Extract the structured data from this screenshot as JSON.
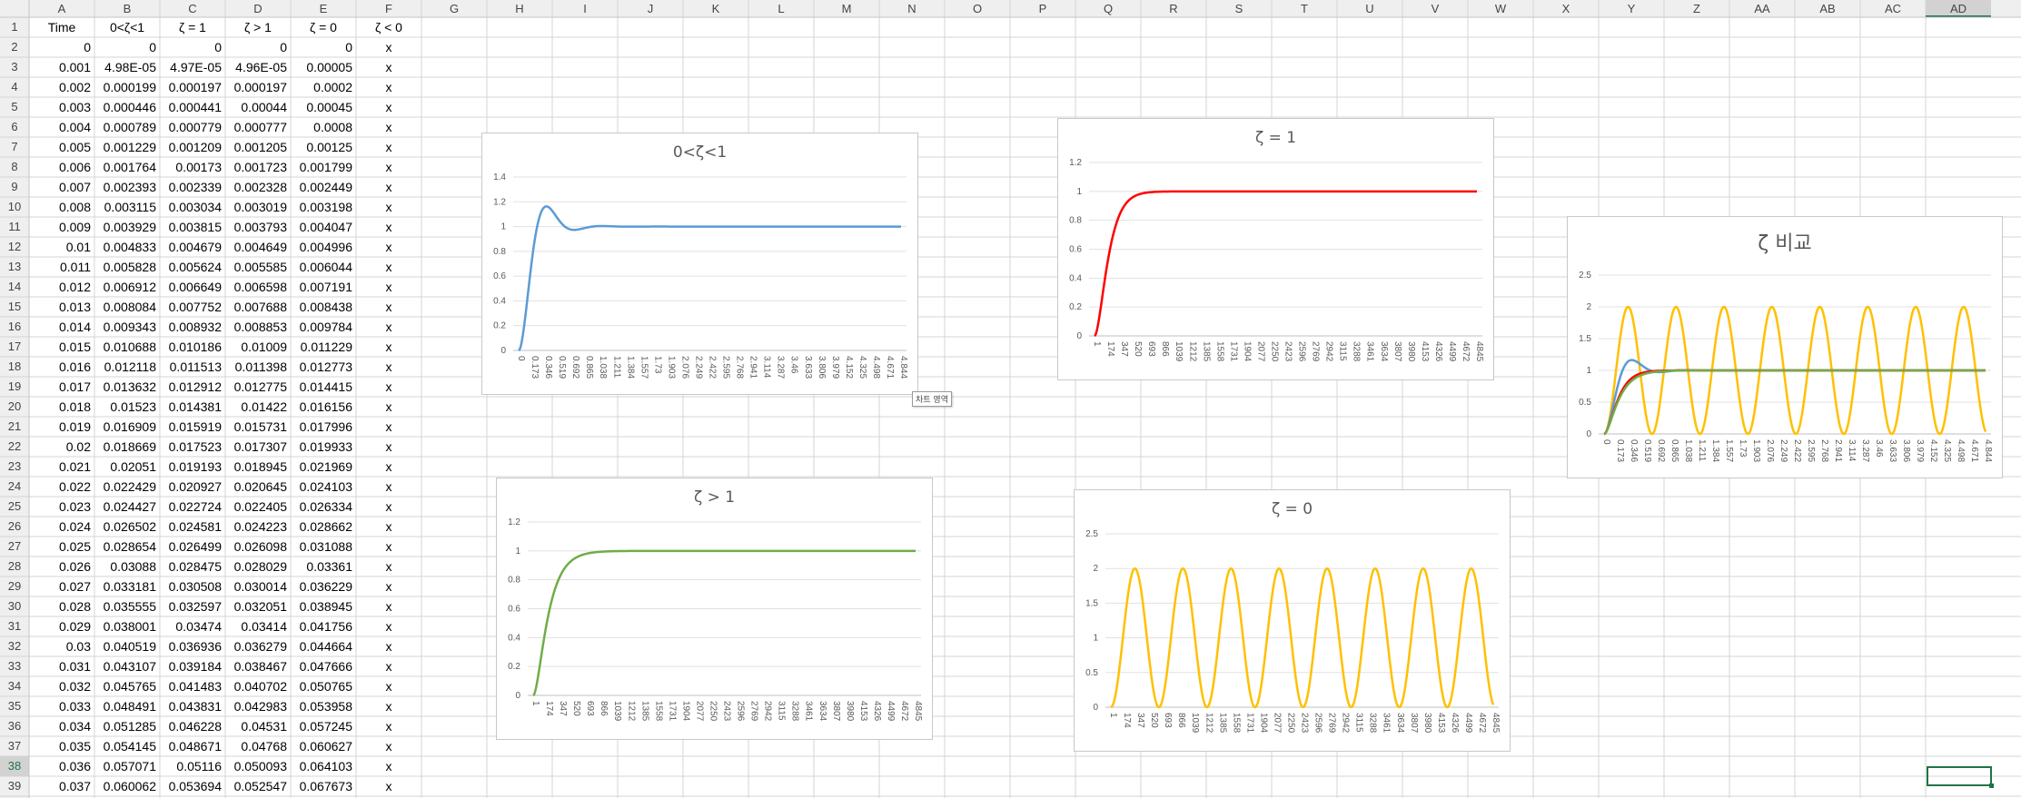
{
  "columns": [
    "A",
    "B",
    "C",
    "D",
    "E",
    "F",
    "G",
    "H",
    "I",
    "J",
    "K",
    "L",
    "M",
    "N",
    "O",
    "P",
    "Q",
    "R",
    "S",
    "T",
    "U",
    "V",
    "W",
    "X",
    "Y",
    "Z",
    "AA",
    "AB",
    "AC",
    "AD"
  ],
  "active_column": "AD",
  "active_row": 38,
  "rows": [
    {
      "n": 1,
      "cells": [
        "Time",
        "0<ζ<1",
        "ζ = 1",
        "ζ > 1",
        "ζ = 0",
        "ζ < 0"
      ]
    },
    {
      "n": 2,
      "cells": [
        "0",
        "0",
        "0",
        "0",
        "0",
        "x"
      ]
    },
    {
      "n": 3,
      "cells": [
        "0.001",
        "4.98E-05",
        "4.97E-05",
        "4.96E-05",
        "0.00005",
        "x"
      ]
    },
    {
      "n": 4,
      "cells": [
        "0.002",
        "0.000199",
        "0.000197",
        "0.000197",
        "0.0002",
        "x"
      ]
    },
    {
      "n": 5,
      "cells": [
        "0.003",
        "0.000446",
        "0.000441",
        "0.00044",
        "0.00045",
        "x"
      ]
    },
    {
      "n": 6,
      "cells": [
        "0.004",
        "0.000789",
        "0.000779",
        "0.000777",
        "0.0008",
        "x"
      ]
    },
    {
      "n": 7,
      "cells": [
        "0.005",
        "0.001229",
        "0.001209",
        "0.001205",
        "0.00125",
        "x"
      ]
    },
    {
      "n": 8,
      "cells": [
        "0.006",
        "0.001764",
        "0.00173",
        "0.001723",
        "0.001799",
        "x"
      ]
    },
    {
      "n": 9,
      "cells": [
        "0.007",
        "0.002393",
        "0.002339",
        "0.002328",
        "0.002449",
        "x"
      ]
    },
    {
      "n": 10,
      "cells": [
        "0.008",
        "0.003115",
        "0.003034",
        "0.003019",
        "0.003198",
        "x"
      ]
    },
    {
      "n": 11,
      "cells": [
        "0.009",
        "0.003929",
        "0.003815",
        "0.003793",
        "0.004047",
        "x"
      ]
    },
    {
      "n": 12,
      "cells": [
        "0.01",
        "0.004833",
        "0.004679",
        "0.004649",
        "0.004996",
        "x"
      ]
    },
    {
      "n": 13,
      "cells": [
        "0.011",
        "0.005828",
        "0.005624",
        "0.005585",
        "0.006044",
        "x"
      ]
    },
    {
      "n": 14,
      "cells": [
        "0.012",
        "0.006912",
        "0.006649",
        "0.006598",
        "0.007191",
        "x"
      ]
    },
    {
      "n": 15,
      "cells": [
        "0.013",
        "0.008084",
        "0.007752",
        "0.007688",
        "0.008438",
        "x"
      ]
    },
    {
      "n": 16,
      "cells": [
        "0.014",
        "0.009343",
        "0.008932",
        "0.008853",
        "0.009784",
        "x"
      ]
    },
    {
      "n": 17,
      "cells": [
        "0.015",
        "0.010688",
        "0.010186",
        "0.01009",
        "0.011229",
        "x"
      ]
    },
    {
      "n": 18,
      "cells": [
        "0.016",
        "0.012118",
        "0.011513",
        "0.011398",
        "0.012773",
        "x"
      ]
    },
    {
      "n": 19,
      "cells": [
        "0.017",
        "0.013632",
        "0.012912",
        "0.012775",
        "0.014415",
        "x"
      ]
    },
    {
      "n": 20,
      "cells": [
        "0.018",
        "0.01523",
        "0.014381",
        "0.01422",
        "0.016156",
        "x"
      ]
    },
    {
      "n": 21,
      "cells": [
        "0.019",
        "0.016909",
        "0.015919",
        "0.015731",
        "0.017996",
        "x"
      ]
    },
    {
      "n": 22,
      "cells": [
        "0.02",
        "0.018669",
        "0.017523",
        "0.017307",
        "0.019933",
        "x"
      ]
    },
    {
      "n": 23,
      "cells": [
        "0.021",
        "0.02051",
        "0.019193",
        "0.018945",
        "0.021969",
        "x"
      ]
    },
    {
      "n": 24,
      "cells": [
        "0.022",
        "0.022429",
        "0.020927",
        "0.020645",
        "0.024103",
        "x"
      ]
    },
    {
      "n": 25,
      "cells": [
        "0.023",
        "0.024427",
        "0.022724",
        "0.022405",
        "0.026334",
        "x"
      ]
    },
    {
      "n": 26,
      "cells": [
        "0.024",
        "0.026502",
        "0.024581",
        "0.024223",
        "0.028662",
        "x"
      ]
    },
    {
      "n": 27,
      "cells": [
        "0.025",
        "0.028654",
        "0.026499",
        "0.026098",
        "0.031088",
        "x"
      ]
    },
    {
      "n": 28,
      "cells": [
        "0.026",
        "0.03088",
        "0.028475",
        "0.028029",
        "0.03361",
        "x"
      ]
    },
    {
      "n": 29,
      "cells": [
        "0.027",
        "0.033181",
        "0.030508",
        "0.030014",
        "0.036229",
        "x"
      ]
    },
    {
      "n": 30,
      "cells": [
        "0.028",
        "0.035555",
        "0.032597",
        "0.032051",
        "0.038945",
        "x"
      ]
    },
    {
      "n": 31,
      "cells": [
        "0.029",
        "0.038001",
        "0.03474",
        "0.03414",
        "0.041756",
        "x"
      ]
    },
    {
      "n": 32,
      "cells": [
        "0.03",
        "0.040519",
        "0.036936",
        "0.036279",
        "0.044664",
        "x"
      ]
    },
    {
      "n": 33,
      "cells": [
        "0.031",
        "0.043107",
        "0.039184",
        "0.038467",
        "0.047666",
        "x"
      ]
    },
    {
      "n": 34,
      "cells": [
        "0.032",
        "0.045765",
        "0.041483",
        "0.040702",
        "0.050765",
        "x"
      ]
    },
    {
      "n": 35,
      "cells": [
        "0.033",
        "0.048491",
        "0.043831",
        "0.042983",
        "0.053958",
        "x"
      ]
    },
    {
      "n": 36,
      "cells": [
        "0.034",
        "0.051285",
        "0.046228",
        "0.04531",
        "0.057245",
        "x"
      ]
    },
    {
      "n": 37,
      "cells": [
        "0.035",
        "0.054145",
        "0.048671",
        "0.04768",
        "0.060627",
        "x"
      ]
    },
    {
      "n": 38,
      "cells": [
        "0.036",
        "0.057071",
        "0.05116",
        "0.050093",
        "0.064103",
        "x"
      ]
    },
    {
      "n": 39,
      "cells": [
        "0.037",
        "0.060062",
        "0.053694",
        "0.052547",
        "0.067673",
        "x"
      ]
    }
  ],
  "colors": {
    "blue": "#5B9BD5",
    "red": "#FF0000",
    "green": "#70AD47",
    "orange": "#FFC000",
    "grid": "#e1e1e1",
    "header_bg": "#efefef"
  },
  "tooltip": "차트 영역",
  "chart_data": [
    {
      "id": "c1",
      "type": "line",
      "title": "0<ζ<1",
      "ylim": [
        0,
        1.4
      ],
      "yticks": [
        "0",
        "0.2",
        "0.4",
        "0.6",
        "0.8",
        "1",
        "1.2",
        "1.4"
      ],
      "xticks": [
        "0",
        "0.173",
        "0.346",
        "0.519",
        "0.692",
        "0.865",
        "1.038",
        "1.211",
        "1.384",
        "1.557",
        "1.73",
        "1.903",
        "2.076",
        "2.249",
        "2.422",
        "2.595",
        "2.768",
        "2.941",
        "3.114",
        "3.287",
        "3.46",
        "3.633",
        "3.806",
        "3.979",
        "4.152",
        "4.325",
        "4.498",
        "4.671",
        "4.844"
      ],
      "series": [
        {
          "kind": "under",
          "color": "#5B9BD5",
          "zeta": 0.5,
          "wn": 10,
          "t_end": 5
        }
      ]
    },
    {
      "id": "c2",
      "type": "line",
      "title": "ζ = 1",
      "ylim": [
        0,
        1.2
      ],
      "yticks": [
        "0",
        "0.2",
        "0.4",
        "0.6",
        "0.8",
        "1",
        "1.2"
      ],
      "xticks": [
        "1",
        "174",
        "347",
        "520",
        "693",
        "866",
        "1039",
        "1212",
        "1385",
        "1558",
        "1731",
        "1904",
        "2077",
        "2250",
        "2423",
        "2596",
        "2769",
        "2942",
        "3115",
        "3288",
        "3461",
        "3634",
        "3807",
        "3980",
        "4153",
        "4326",
        "4499",
        "4672",
        "4845"
      ],
      "series": [
        {
          "kind": "critical",
          "color": "#FF0000",
          "wn": 10,
          "t_end": 5
        }
      ]
    },
    {
      "id": "c3",
      "type": "line",
      "title": "ζ > 1",
      "ylim": [
        0,
        1.2
      ],
      "yticks": [
        "0",
        "0.2",
        "0.4",
        "0.6",
        "0.8",
        "1",
        "1.2"
      ],
      "xticks": [
        "1",
        "174",
        "347",
        "520",
        "693",
        "866",
        "1039",
        "1212",
        "1385",
        "1558",
        "1731",
        "1904",
        "2077",
        "2250",
        "2423",
        "2596",
        "2769",
        "2942",
        "3115",
        "3288",
        "3461",
        "3634",
        "3807",
        "3980",
        "4153",
        "4326",
        "4499",
        "4672",
        "4845"
      ],
      "series": [
        {
          "kind": "over",
          "color": "#70AD47",
          "zeta": 1.1,
          "wn": 10,
          "t_end": 5
        }
      ]
    },
    {
      "id": "c4",
      "type": "line",
      "title": "ζ = 0",
      "ylim": [
        0,
        2.5
      ],
      "yticks": [
        "0",
        "0.5",
        "1",
        "1.5",
        "2",
        "2.5"
      ],
      "xticks": [
        "1",
        "174",
        "347",
        "520",
        "693",
        "866",
        "1039",
        "1212",
        "1385",
        "1558",
        "1731",
        "1904",
        "2077",
        "2250",
        "2423",
        "2596",
        "2769",
        "2942",
        "3115",
        "3288",
        "3461",
        "3634",
        "3807",
        "3980",
        "4153",
        "4326",
        "4499",
        "4672",
        "4845"
      ],
      "series": [
        {
          "kind": "undamped",
          "color": "#FFC000",
          "wn": 10,
          "t_end": 5
        }
      ]
    },
    {
      "id": "c5",
      "type": "line",
      "title": "ζ 비교",
      "ylim": [
        0,
        2.5
      ],
      "yticks": [
        "0",
        "0.5",
        "1",
        "1.5",
        "2",
        "2.5"
      ],
      "xticks": [
        "0",
        "0.173",
        "0.346",
        "0.519",
        "0.692",
        "0.865",
        "1.038",
        "1.211",
        "1.384",
        "1.557",
        "1.73",
        "1.903",
        "2.076",
        "2.249",
        "2.422",
        "2.595",
        "2.768",
        "2.941",
        "3.114",
        "3.287",
        "3.46",
        "3.633",
        "3.806",
        "3.979",
        "4.152",
        "4.325",
        "4.498",
        "4.671",
        "4.844"
      ],
      "series": [
        {
          "kind": "undamped",
          "color": "#FFC000",
          "wn": 10,
          "t_end": 5
        },
        {
          "kind": "under",
          "color": "#5B9BD5",
          "zeta": 0.5,
          "wn": 10,
          "t_end": 5
        },
        {
          "kind": "critical",
          "color": "#FF0000",
          "wn": 10,
          "t_end": 5
        },
        {
          "kind": "over",
          "color": "#70AD47",
          "zeta": 1.1,
          "wn": 10,
          "t_end": 5
        }
      ]
    }
  ]
}
